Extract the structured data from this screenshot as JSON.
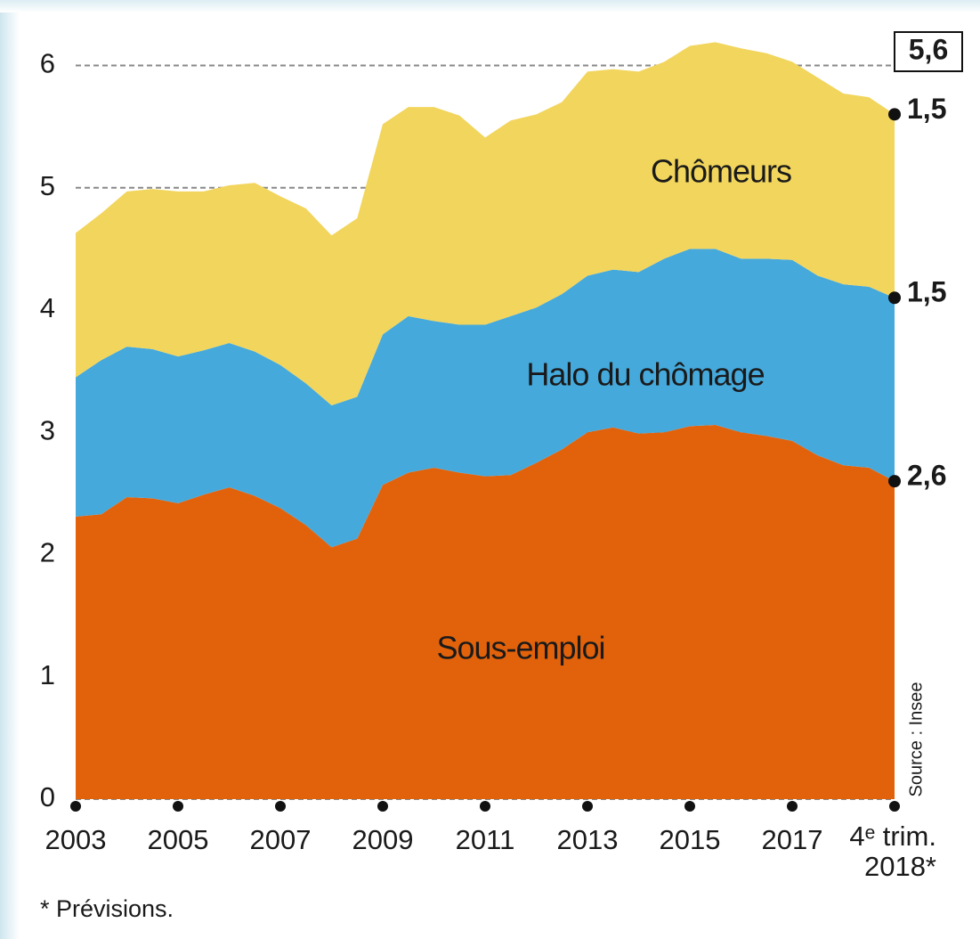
{
  "chart_data": {
    "type": "stacked_area",
    "x": [
      2003,
      2003.5,
      2004,
      2004.5,
      2005,
      2005.5,
      2006,
      2006.5,
      2007,
      2007.5,
      2008,
      2008.5,
      2009,
      2009.5,
      2010,
      2010.5,
      2011,
      2011.5,
      2012,
      2012.5,
      2013,
      2013.5,
      2014,
      2014.5,
      2015,
      2015.5,
      2016,
      2016.5,
      2017,
      2017.5,
      2018,
      2018.5,
      2019
    ],
    "series": [
      {
        "name": "Chômeurs",
        "color": "#e2620c",
        "values": [
          2.31,
          2.33,
          2.47,
          2.46,
          2.42,
          2.49,
          2.55,
          2.48,
          2.38,
          2.24,
          2.06,
          2.13,
          2.57,
          2.67,
          2.71,
          2.67,
          2.64,
          2.65,
          2.75,
          2.86,
          3.0,
          3.04,
          2.99,
          3.0,
          3.05,
          3.06,
          3.0,
          2.97,
          2.93,
          2.81,
          2.73,
          2.71,
          2.6
        ],
        "value_labels": [
          null,
          null,
          null,
          null,
          null,
          null,
          null,
          null,
          null,
          null,
          null,
          null,
          null,
          null,
          null,
          null,
          null,
          null,
          null,
          null,
          null,
          null,
          null,
          null,
          null,
          null,
          null,
          null,
          null,
          null,
          null,
          null,
          "2,6"
        ]
      },
      {
        "name": "Halo du chômage",
        "color": "#45a9dc",
        "values": [
          1.14,
          1.26,
          1.23,
          1.22,
          1.2,
          1.18,
          1.18,
          1.18,
          1.17,
          1.16,
          1.16,
          1.16,
          1.23,
          1.28,
          1.2,
          1.21,
          1.24,
          1.3,
          1.27,
          1.27,
          1.28,
          1.29,
          1.32,
          1.42,
          1.45,
          1.44,
          1.42,
          1.45,
          1.48,
          1.47,
          1.48,
          1.48,
          1.5
        ],
        "value_labels": [
          null,
          null,
          null,
          null,
          null,
          null,
          null,
          null,
          null,
          null,
          null,
          null,
          null,
          null,
          null,
          null,
          null,
          null,
          null,
          null,
          null,
          null,
          null,
          null,
          null,
          null,
          null,
          null,
          null,
          null,
          null,
          null,
          "1,5"
        ]
      },
      {
        "name": "Sous-emploi",
        "color": "#f2d55c",
        "values": [
          1.18,
          1.2,
          1.27,
          1.31,
          1.35,
          1.3,
          1.29,
          1.38,
          1.38,
          1.43,
          1.39,
          1.46,
          1.72,
          1.71,
          1.75,
          1.71,
          1.53,
          1.6,
          1.58,
          1.57,
          1.67,
          1.64,
          1.64,
          1.61,
          1.66,
          1.69,
          1.72,
          1.68,
          1.62,
          1.62,
          1.56,
          1.55,
          1.5
        ],
        "value_labels": [
          null,
          null,
          null,
          null,
          null,
          null,
          null,
          null,
          null,
          null,
          null,
          null,
          null,
          null,
          null,
          null,
          null,
          null,
          null,
          null,
          null,
          null,
          null,
          null,
          null,
          null,
          null,
          null,
          null,
          null,
          null,
          null,
          "1,5"
        ]
      }
    ],
    "total": 5.6,
    "total_label": "5,6",
    "xlim": [
      2003,
      2019
    ],
    "xticks": [
      2003,
      2005,
      2007,
      2009,
      2011,
      2013,
      2015,
      2017,
      {
        "value": 2019,
        "label": "4ᵉ trim. 2018*"
      }
    ],
    "ylim": [
      0,
      6.2
    ],
    "yticks": [
      0,
      1,
      2,
      3,
      4,
      5,
      6
    ],
    "grid": true,
    "source": "Source : Insee",
    "footnote": "* Prévisions."
  }
}
